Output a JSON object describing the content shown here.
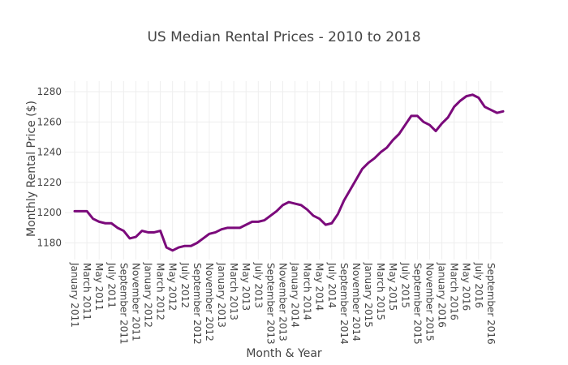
{
  "chart_data": {
    "type": "line",
    "title": "US Median Rental Prices - 2010 to 2018",
    "xlabel": "Month & Year",
    "ylabel": "Monthly Rental Price ($)",
    "grid": true,
    "line_color": "#7b0a7b",
    "ylim": [
      1169,
      1287
    ],
    "y_ticks": [
      1180,
      1200,
      1220,
      1240,
      1260,
      1280
    ],
    "x_tick_labels": [
      "January 2011",
      "March 2011",
      "May 2011",
      "July 2011",
      "September 2011",
      "November 2011",
      "January 2012",
      "March 2012",
      "May 2012",
      "July 2012",
      "September 2012",
      "November 2012",
      "January 2013",
      "March 2013",
      "May 2013",
      "July 2013",
      "September 2013",
      "November 2013",
      "January 2014",
      "March 2014",
      "May 2014",
      "July 2014",
      "September 2014",
      "November 2014",
      "January 2015",
      "March 2015",
      "May 2015",
      "July 2015",
      "September 2015",
      "November 2015",
      "January 2016",
      "March 2016",
      "May 2016",
      "July 2016",
      "September 2016"
    ],
    "series": [
      {
        "values": [
          1201,
          1201,
          1201,
          1196,
          1194,
          1193,
          1193,
          1190,
          1188,
          1183,
          1184,
          1188,
          1187,
          1187,
          1188,
          1177,
          1175,
          1177,
          1178,
          1178,
          1180,
          1183,
          1186,
          1187,
          1189,
          1190,
          1190,
          1190,
          1192,
          1194,
          1194,
          1195,
          1198,
          1201,
          1205,
          1207,
          1206,
          1205,
          1202,
          1198,
          1196,
          1192,
          1193,
          1199,
          1208,
          1215,
          1222,
          1229,
          1233,
          1236,
          1240,
          1243,
          1248,
          1252,
          1258,
          1264,
          1264,
          1260,
          1258,
          1254,
          1259,
          1263,
          1270,
          1274,
          1277,
          1278,
          1276,
          1270,
          1268,
          1266,
          1267
        ]
      }
    ]
  }
}
